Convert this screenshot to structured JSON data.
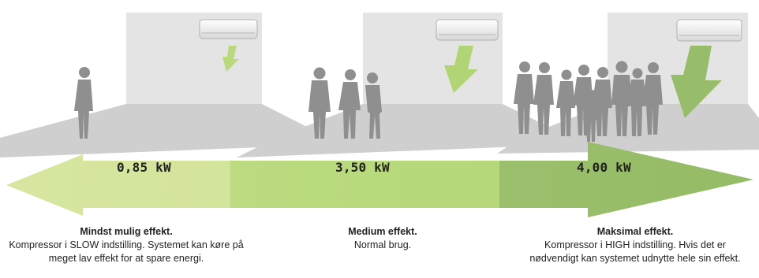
{
  "modes": [
    {
      "power": "0,85 kW",
      "title": "Mindst mulig effekt.",
      "lines": [
        "Kompressor i SLOW indstilling. Systemet kan køre på",
        "meget lav effekt for at spare energi."
      ],
      "people": 1
    },
    {
      "power": "3,50 kW",
      "title": "Medium effekt.",
      "lines": [
        "Normal brug."
      ],
      "people": 3
    },
    {
      "power": "4,00 kW",
      "title": "Maksimal effekt.",
      "lines": [
        "Kompressor i HIGH indstilling. Hvis det er",
        "nødvendigt kan systemet udnytte hele sin effekt."
      ],
      "people": 9
    }
  ],
  "colors": {
    "arrow_light": "#d6e6a0",
    "arrow_mid": "#b9d97c",
    "arrow_dark": "#97bc6a",
    "wall": "#e4e4e4",
    "floor": "#cccccc",
    "silhouette": "#8f8f8f"
  },
  "icons": [
    "air-conditioner-icon",
    "airflow-arrow-icon",
    "person-silhouette-icon"
  ]
}
